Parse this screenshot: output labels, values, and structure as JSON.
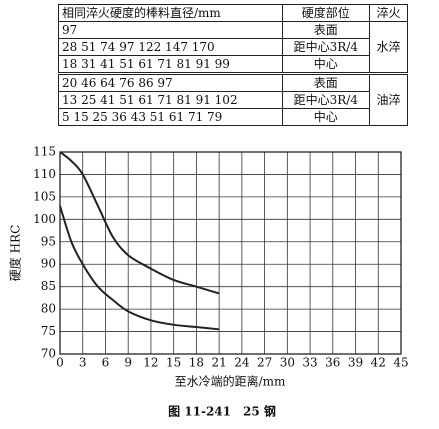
{
  "table": {
    "header": [
      "相同淬火硬度的棒料直径/mm",
      "硬度部位",
      "淬火"
    ],
    "groups": [
      {
        "method": "水淬",
        "rows": [
          [
            "97",
            "表面"
          ],
          [
            "28 51 74 97 122 147 170",
            "距中心3R/4"
          ],
          [
            "18 31 41 51 61 71 81 91 99",
            "中心"
          ]
        ]
      },
      {
        "method": "油淬",
        "rows": [
          [
            "20 46 64 76 86 97",
            "表面"
          ],
          [
            "13 25 41 51 61 71 81 91 102",
            "距中心3R/4"
          ],
          [
            "5 15 25 36 43 51 61 71 79",
            "中心"
          ]
        ]
      }
    ]
  },
  "chart_data": {
    "type": "line",
    "x_label": "至水冷端的距离/mm",
    "y_label": "硬度 HRC",
    "x": [
      0,
      1.5,
      3,
      5,
      7,
      9,
      12,
      15,
      18,
      21
    ],
    "series": [
      {
        "color": "#222222",
        "values": [
          115,
          113,
          110,
          103,
          96,
          92,
          89,
          86.5,
          85,
          83.5
        ]
      },
      {
        "color": "#222222",
        "values": [
          103,
          95,
          90,
          85,
          82,
          79.5,
          77.5,
          76.5,
          76,
          75.5
        ]
      }
    ],
    "xlim": [
      0,
      45
    ],
    "xticks": [
      0,
      3,
      6,
      9,
      12,
      15,
      18,
      21,
      24,
      27,
      30,
      33,
      36,
      39,
      42,
      45
    ],
    "ylim": [
      70,
      115
    ],
    "yticks": [
      70,
      75,
      80,
      85,
      90,
      95,
      100,
      105,
      110,
      115
    ],
    "grid": true
  },
  "caption": "图 11-241　25 钢"
}
